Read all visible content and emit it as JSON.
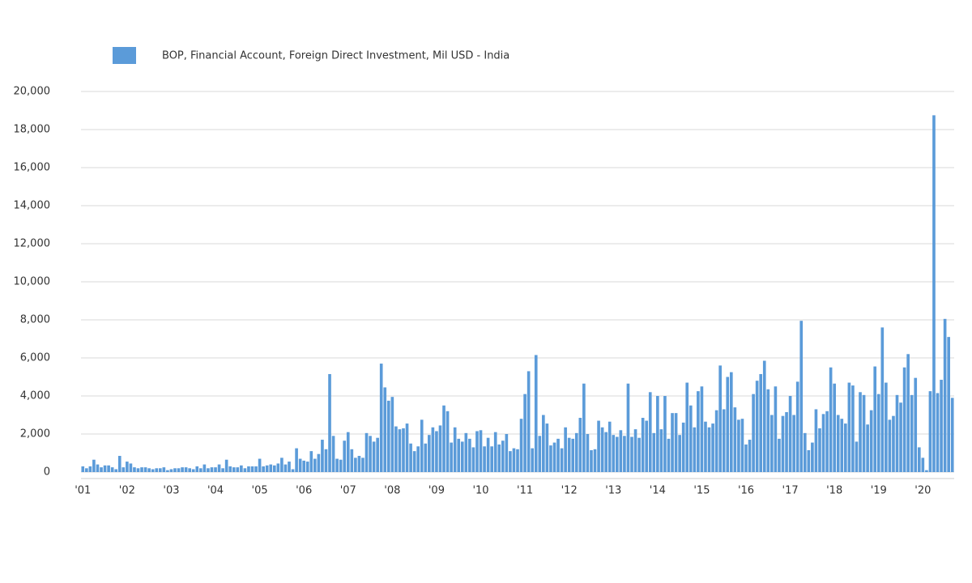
{
  "chart_data": {
    "type": "bar",
    "legend": "top-left",
    "categories": [
      "'01",
      null,
      null,
      null,
      null,
      null,
      null,
      null,
      null,
      null,
      null,
      null,
      "'02",
      null,
      null,
      null,
      null,
      null,
      null,
      null,
      null,
      null,
      null,
      null,
      "'03",
      null,
      null,
      null,
      null,
      null,
      null,
      null,
      null,
      null,
      null,
      null,
      "'04",
      null,
      null,
      null,
      null,
      null,
      null,
      null,
      null,
      null,
      null,
      null,
      "'05",
      null,
      null,
      null,
      null,
      null,
      null,
      null,
      null,
      null,
      null,
      null,
      "'06",
      null,
      null,
      null,
      null,
      null,
      null,
      null,
      null,
      null,
      null,
      null,
      "'07",
      null,
      null,
      null,
      null,
      null,
      null,
      null,
      null,
      null,
      null,
      null,
      "'08",
      null,
      null,
      null,
      null,
      null,
      null,
      null,
      null,
      null,
      null,
      null,
      "'09",
      null,
      null,
      null,
      null,
      null,
      null,
      null,
      null,
      null,
      null,
      null,
      "'10",
      null,
      null,
      null,
      null,
      null,
      null,
      null,
      null,
      null,
      null,
      null,
      "'11",
      null,
      null,
      null,
      null,
      null,
      null,
      null,
      null,
      null,
      null,
      null,
      "'12",
      null,
      null,
      null,
      null,
      null,
      null,
      null,
      null,
      null,
      null,
      null,
      "'13",
      null,
      null,
      null,
      null,
      null,
      null,
      null,
      null,
      null,
      null,
      null,
      "'14",
      null,
      null,
      null,
      null,
      null,
      null,
      null,
      null,
      null,
      null,
      null,
      "'15",
      null,
      null,
      null,
      null,
      null,
      null,
      null,
      null,
      null,
      null,
      null,
      "'16",
      null,
      null,
      null,
      null,
      null,
      null,
      null,
      null,
      null,
      null,
      null,
      "'17",
      null,
      null,
      null,
      null,
      null,
      null,
      null,
      null,
      null,
      null,
      null,
      "'18",
      null,
      null,
      null,
      null,
      null,
      null,
      null,
      null,
      null,
      null,
      null,
      "'19",
      null,
      null,
      null,
      null,
      null,
      null,
      null,
      null,
      null,
      null,
      null,
      "'20",
      null,
      null,
      null,
      null,
      null,
      null,
      null,
      null
    ],
    "series": [
      {
        "name": "BOP, Financial Account, Foreign Direct Investment, Mil USD - India",
        "color": "#5b9bd9",
        "values": [
          300,
          200,
          300,
          650,
          400,
          250,
          350,
          350,
          250,
          150,
          850,
          250,
          550,
          450,
          250,
          200,
          250,
          250,
          200,
          150,
          200,
          200,
          250,
          100,
          150,
          200,
          200,
          250,
          250,
          200,
          150,
          300,
          200,
          400,
          200,
          250,
          250,
          400,
          200,
          650,
          300,
          250,
          250,
          350,
          200,
          300,
          300,
          300,
          700,
          300,
          350,
          400,
          350,
          450,
          750,
          400,
          550,
          150,
          1250,
          700,
          600,
          550,
          1100,
          700,
          950,
          1700,
          1200,
          5150,
          1900,
          700,
          650,
          1650,
          2100,
          1200,
          750,
          850,
          750,
          2050,
          1900,
          1600,
          1800,
          5700,
          4450,
          3750,
          3950,
          2400,
          2250,
          2300,
          2550,
          1500,
          1100,
          1350,
          2750,
          1500,
          1950,
          2350,
          2150,
          2450,
          3500,
          3200,
          1550,
          2350,
          1750,
          1600,
          2050,
          1750,
          1300,
          2150,
          2200,
          1350,
          1800,
          1350,
          2100,
          1450,
          1650,
          2000,
          1100,
          1250,
          1200,
          2800,
          4100,
          5300,
          1250,
          6150,
          1900,
          3000,
          2550,
          1400,
          1550,
          1750,
          1250,
          2350,
          1800,
          1750,
          2050,
          2850,
          4650,
          2000,
          1150,
          1200,
          2700,
          2350,
          2100,
          2650,
          1950,
          1850,
          2200,
          1900,
          4650,
          1850,
          2250,
          1800,
          2850,
          2700,
          4200,
          2050,
          4000,
          2250,
          4000,
          1750,
          3100,
          3100,
          1950,
          2600,
          4700,
          3500,
          2350,
          4250,
          4500,
          2650,
          2350,
          2550,
          3250,
          5600,
          3300,
          5000,
          5250,
          3400,
          2750,
          2800,
          1450,
          1700,
          4100,
          4800,
          5150,
          5850,
          4350,
          3000,
          4500,
          1750,
          2950,
          3150,
          4000,
          3000,
          4750,
          7950,
          2050,
          1150,
          1550,
          3300,
          2300,
          3050,
          3200,
          5500,
          4650,
          3000,
          2800,
          2550,
          4700,
          4550,
          1600,
          4200,
          4050,
          2500,
          3250,
          5550,
          4100,
          7600,
          4700,
          2750,
          2950,
          4050,
          3650,
          5500,
          6200,
          4050,
          4950,
          1300,
          750,
          100,
          4250,
          18750,
          4150,
          4850,
          8050,
          7100,
          3900
        ]
      }
    ],
    "ylim": [
      0,
      20000
    ],
    "yticks": [
      0,
      {
        "value": 2000,
        "label": "2,000"
      },
      {
        "value": 4000,
        "label": "4,000"
      },
      {
        "value": 6000,
        "label": "6,000"
      },
      {
        "value": 8000,
        "label": "8,000"
      },
      {
        "value": 10000,
        "label": "10,000"
      },
      {
        "value": 12000,
        "label": "12,000"
      },
      {
        "value": 14000,
        "label": "14,000"
      },
      {
        "value": 16000,
        "label": "16,000"
      },
      {
        "value": 18000,
        "label": "18,000"
      },
      {
        "value": 20000,
        "label": "20,000"
      }
    ],
    "grid": true
  }
}
